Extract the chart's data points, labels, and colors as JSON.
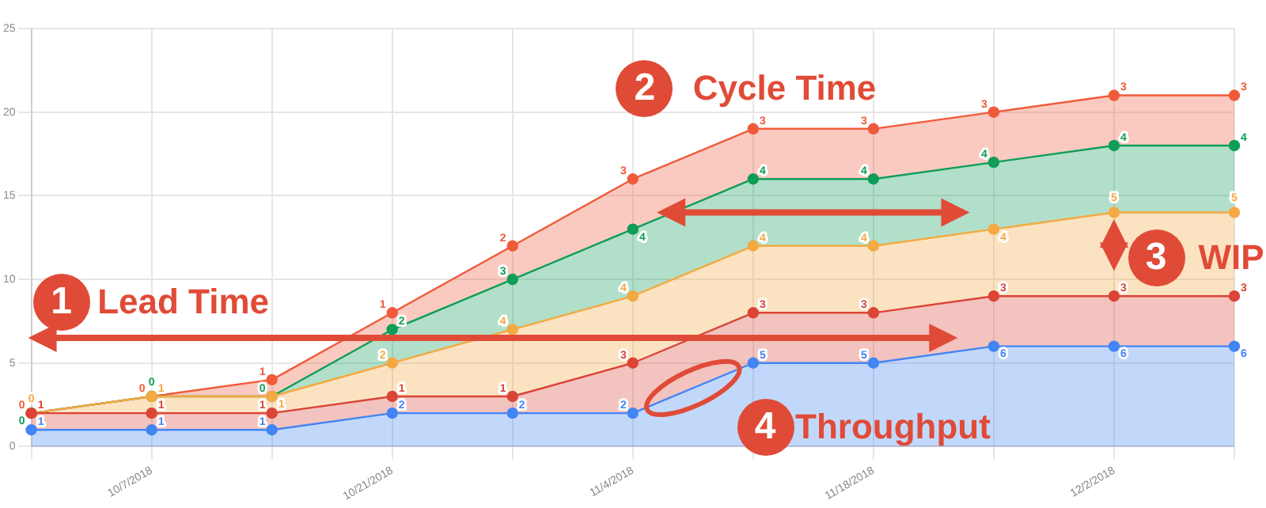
{
  "chart_data": {
    "type": "area",
    "stacked": true,
    "data_labels": true,
    "grid": true,
    "marker": "circle",
    "legend": false,
    "categories": [
      null,
      "10/7/2018",
      null,
      "10/21/2018",
      null,
      "11/4/2018",
      null,
      "11/18/2018",
      null,
      "12/2/2018",
      null
    ],
    "ylim": [
      0,
      25
    ],
    "yticks": [
      0,
      5,
      10,
      15,
      20,
      25
    ],
    "series": [
      {
        "color": "#4285f4",
        "values": [
          1,
          1,
          1,
          2,
          2,
          2,
          5,
          5,
          6,
          6,
          6
        ]
      },
      {
        "color": "#db4437",
        "values": [
          1,
          1,
          1,
          1,
          1,
          3,
          3,
          3,
          3,
          3,
          3
        ]
      },
      {
        "color": "#f4a942",
        "values": [
          0,
          1,
          1,
          2,
          4,
          4,
          4,
          4,
          4,
          5,
          5
        ]
      },
      {
        "color": "#0f9d58",
        "values": [
          0,
          0,
          0,
          2,
          3,
          4,
          4,
          4,
          4,
          4,
          4
        ]
      },
      {
        "color": "#ef5b3a",
        "values": [
          0,
          0,
          1,
          1,
          2,
          3,
          3,
          3,
          3,
          3,
          3
        ]
      }
    ],
    "annotations": [
      "1",
      "Lead Time",
      "2",
      "Cycle Time",
      "3",
      "WIP",
      "4",
      "Throughput"
    ]
  }
}
